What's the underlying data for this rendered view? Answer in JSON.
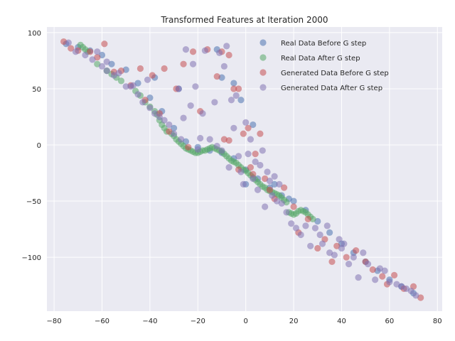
{
  "chart_data": {
    "type": "scatter",
    "title": "Transformed Features at Iteration 2000",
    "xlabel": "",
    "ylabel": "",
    "xlim": [
      -83,
      82
    ],
    "ylim": [
      -148,
      105
    ],
    "xticks": [
      -80,
      -60,
      -40,
      -20,
      0,
      20,
      40,
      60,
      80
    ],
    "yticks": [
      -100,
      -50,
      0,
      50,
      100
    ],
    "grid": true,
    "legend_position": "top-right",
    "series": [
      {
        "name": "Real Data Before G step",
        "color": "#4c72b0",
        "points": [
          [
            -75,
            90
          ],
          [
            -70,
            87
          ],
          [
            -65,
            84
          ],
          [
            -60,
            80
          ],
          [
            -56,
            72
          ],
          [
            -50,
            67
          ],
          [
            -45,
            55
          ],
          [
            -40,
            42
          ],
          [
            -35,
            30
          ],
          [
            -30,
            15
          ],
          [
            -25,
            3
          ],
          [
            -20,
            -2
          ],
          [
            -15,
            -5
          ],
          [
            -10,
            -7
          ],
          [
            -5,
            -12
          ],
          [
            0,
            -22
          ],
          [
            5,
            -30
          ],
          [
            10,
            -38
          ],
          [
            15,
            -45
          ],
          [
            20,
            -50
          ],
          [
            25,
            -58
          ],
          [
            30,
            -68
          ],
          [
            35,
            -78
          ],
          [
            40,
            -88
          ],
          [
            45,
            -96
          ],
          [
            50,
            -104
          ],
          [
            55,
            -112
          ],
          [
            60,
            -120
          ],
          [
            65,
            -126
          ],
          [
            70,
            -132
          ],
          [
            -10,
            60
          ],
          [
            -12,
            85
          ],
          [
            -5,
            55
          ],
          [
            -2,
            40
          ],
          [
            3,
            18
          ],
          [
            0,
            -35
          ],
          [
            12,
            -35
          ],
          [
            18,
            -48
          ],
          [
            -38,
            60
          ],
          [
            -28,
            50
          ]
        ]
      },
      {
        "name": "Real Data After G step",
        "color": "#55a868",
        "points": [
          [
            -69,
            89
          ],
          [
            -68,
            87
          ],
          [
            -67,
            85
          ],
          [
            -66,
            83
          ],
          [
            -62,
            72
          ],
          [
            -58,
            66
          ],
          [
            -56,
            63
          ],
          [
            -54,
            60
          ],
          [
            -52,
            57
          ],
          [
            -46,
            48
          ],
          [
            -44,
            44
          ],
          [
            -42,
            38
          ],
          [
            -40,
            34
          ],
          [
            -38,
            30
          ],
          [
            -37,
            27
          ],
          [
            -36,
            22
          ],
          [
            -35,
            18
          ],
          [
            -34,
            15
          ],
          [
            -33,
            12
          ],
          [
            -31,
            10
          ],
          [
            -30,
            8
          ],
          [
            -29,
            5
          ],
          [
            -28,
            3
          ],
          [
            -27,
            1
          ],
          [
            -26,
            -1
          ],
          [
            -25,
            -3
          ],
          [
            -24,
            -4
          ],
          [
            -23,
            -5
          ],
          [
            -22,
            -6
          ],
          [
            -21,
            -7
          ],
          [
            -20,
            -7
          ],
          [
            -19,
            -6
          ],
          [
            -18,
            -5
          ],
          [
            -17,
            -5
          ],
          [
            -16,
            -4
          ],
          [
            -15,
            -3
          ],
          [
            -14,
            -2
          ],
          [
            -13,
            -3
          ],
          [
            -12,
            -4
          ],
          [
            -11,
            -5
          ],
          [
            -10,
            -6
          ],
          [
            -9,
            -8
          ],
          [
            -8,
            -10
          ],
          [
            -7,
            -12
          ],
          [
            -6,
            -14
          ],
          [
            -5,
            -15
          ],
          [
            -4,
            -16
          ],
          [
            -3,
            -18
          ],
          [
            -2,
            -20
          ],
          [
            -1,
            -22
          ],
          [
            0,
            -23
          ],
          [
            1,
            -25
          ],
          [
            2,
            -27
          ],
          [
            3,
            -29
          ],
          [
            4,
            -31
          ],
          [
            5,
            -33
          ],
          [
            6,
            -35
          ],
          [
            7,
            -37
          ],
          [
            8,
            -38
          ],
          [
            9,
            -40
          ],
          [
            10,
            -41
          ],
          [
            11,
            -42
          ],
          [
            12,
            -43
          ],
          [
            13,
            -44
          ],
          [
            14,
            -45
          ],
          [
            15,
            -47
          ],
          [
            16,
            -49
          ],
          [
            17,
            -51
          ],
          [
            18,
            -60
          ],
          [
            19,
            -61
          ],
          [
            20,
            -62
          ],
          [
            21,
            -61
          ],
          [
            22,
            -59
          ],
          [
            23,
            -58
          ],
          [
            24,
            -59
          ],
          [
            25,
            -60
          ],
          [
            26,
            -62
          ],
          [
            27,
            -64
          ],
          [
            28,
            -66
          ]
        ]
      },
      {
        "name": "Generated Data Before G step",
        "color": "#c44e52",
        "points": [
          [
            -76,
            92
          ],
          [
            -73,
            86
          ],
          [
            -70,
            84
          ],
          [
            -65,
            83
          ],
          [
            -62,
            78
          ],
          [
            -59,
            90
          ],
          [
            -55,
            65
          ],
          [
            -52,
            66
          ],
          [
            -48,
            53
          ],
          [
            -44,
            68
          ],
          [
            -42,
            40
          ],
          [
            -39,
            62
          ],
          [
            -36,
            28
          ],
          [
            -34,
            68
          ],
          [
            -32,
            12
          ],
          [
            -29,
            50
          ],
          [
            -26,
            72
          ],
          [
            -24,
            -2
          ],
          [
            -22,
            83
          ],
          [
            -19,
            30
          ],
          [
            -16,
            85
          ],
          [
            -12,
            61
          ],
          [
            -10,
            83
          ],
          [
            -9,
            5
          ],
          [
            -7,
            80
          ],
          [
            -5,
            50
          ],
          [
            -3,
            50
          ],
          [
            -1,
            10
          ],
          [
            1,
            15
          ],
          [
            2,
            -20
          ],
          [
            4,
            -8
          ],
          [
            6,
            10
          ],
          [
            8,
            -30
          ],
          [
            10,
            -40
          ],
          [
            12,
            -48
          ],
          [
            16,
            -38
          ],
          [
            20,
            -55
          ],
          [
            22,
            -78
          ],
          [
            26,
            -66
          ],
          [
            30,
            -92
          ],
          [
            33,
            -84
          ],
          [
            36,
            -104
          ],
          [
            38,
            -90
          ],
          [
            42,
            -100
          ],
          [
            46,
            -94
          ],
          [
            50,
            -104
          ],
          [
            53,
            -111
          ],
          [
            57,
            -117
          ],
          [
            59,
            -124
          ],
          [
            62,
            -116
          ],
          [
            66,
            -128
          ],
          [
            70,
            -126
          ],
          [
            73,
            -136
          ],
          [
            -7,
            4
          ],
          [
            -3,
            -22
          ],
          [
            3,
            -26
          ]
        ]
      },
      {
        "name": "Generated Data After G step",
        "color": "#8172b2",
        "points": [
          [
            -74,
            91
          ],
          [
            -71,
            83
          ],
          [
            -67,
            80
          ],
          [
            -64,
            76
          ],
          [
            -60,
            70
          ],
          [
            -58,
            74
          ],
          [
            -55,
            62
          ],
          [
            -53,
            64
          ],
          [
            -50,
            52
          ],
          [
            -47,
            53
          ],
          [
            -45,
            45
          ],
          [
            -43,
            38
          ],
          [
            -41,
            58
          ],
          [
            -40,
            33
          ],
          [
            -38,
            28
          ],
          [
            -36,
            25
          ],
          [
            -34,
            22
          ],
          [
            -32,
            18
          ],
          [
            -30,
            10
          ],
          [
            -28,
            50
          ],
          [
            -27,
            5
          ],
          [
            -26,
            24
          ],
          [
            -25,
            85
          ],
          [
            -23,
            35
          ],
          [
            -22,
            72
          ],
          [
            -21,
            52
          ],
          [
            -20,
            -4
          ],
          [
            -19,
            6
          ],
          [
            -18,
            28
          ],
          [
            -17,
            84
          ],
          [
            -15,
            5
          ],
          [
            -13,
            38
          ],
          [
            -12,
            -1
          ],
          [
            -11,
            82
          ],
          [
            -10,
            -5
          ],
          [
            -9,
            70
          ],
          [
            -8,
            88
          ],
          [
            -7,
            -20
          ],
          [
            -6,
            40
          ],
          [
            -5,
            15
          ],
          [
            -4,
            44
          ],
          [
            -3,
            -10
          ],
          [
            -2,
            -24
          ],
          [
            -1,
            -35
          ],
          [
            0,
            20
          ],
          [
            1,
            -8
          ],
          [
            2,
            5
          ],
          [
            3,
            -30
          ],
          [
            4,
            -15
          ],
          [
            5,
            -40
          ],
          [
            6,
            -18
          ],
          [
            7,
            -5
          ],
          [
            8,
            -55
          ],
          [
            9,
            -24
          ],
          [
            10,
            -32
          ],
          [
            11,
            -45
          ],
          [
            12,
            -28
          ],
          [
            13,
            -50
          ],
          [
            14,
            -35
          ],
          [
            15,
            -52
          ],
          [
            17,
            -60
          ],
          [
            19,
            -70
          ],
          [
            21,
            -74
          ],
          [
            23,
            -80
          ],
          [
            25,
            -72
          ],
          [
            27,
            -90
          ],
          [
            29,
            -74
          ],
          [
            31,
            -80
          ],
          [
            32,
            -88
          ],
          [
            34,
            -72
          ],
          [
            35,
            -96
          ],
          [
            37,
            -98
          ],
          [
            39,
            -84
          ],
          [
            40,
            -92
          ],
          [
            41,
            -88
          ],
          [
            43,
            -106
          ],
          [
            45,
            -100
          ],
          [
            47,
            -118
          ],
          [
            49,
            -96
          ],
          [
            51,
            -106
          ],
          [
            54,
            -120
          ],
          [
            56,
            -110
          ],
          [
            58,
            -112
          ],
          [
            60,
            -122
          ],
          [
            63,
            -124
          ],
          [
            65,
            -126
          ],
          [
            67,
            -128
          ],
          [
            69,
            -130
          ],
          [
            71,
            -134
          ],
          [
            -62,
            83
          ],
          [
            -58,
            66
          ],
          [
            -48,
            52
          ]
        ]
      }
    ]
  }
}
